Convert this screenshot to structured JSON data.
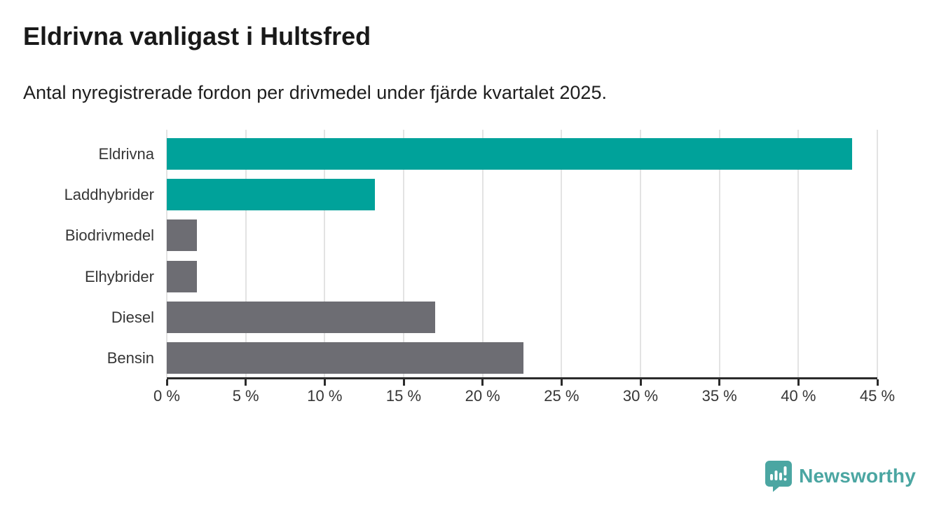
{
  "page": {
    "title": "Eldrivna vanligast i Hultsfred",
    "subtitle": "Antal nyregistrerade fordon per drivmedel under fjärde kvartalet 2025."
  },
  "branding": {
    "logo_text": "Newsworthy",
    "logo_icon": "speech-bubble-with-bar-chart-and-exclamation",
    "logo_color": "#4ba6a2"
  },
  "chart_data": {
    "type": "bar",
    "orientation": "horizontal",
    "title": "Eldrivna vanligast i Hultsfred",
    "subtitle": "Antal nyregistrerade fordon per drivmedel under fjärde kvartalet 2025.",
    "categories": [
      "Eldrivna",
      "Laddhybrider",
      "Biodrivmedel",
      "Elhybrider",
      "Diesel",
      "Bensin"
    ],
    "values": [
      43.4,
      13.2,
      1.9,
      1.9,
      17.0,
      22.6
    ],
    "unit": "%",
    "bar_colors": [
      "#00a29a",
      "#00a29a",
      "#6d6d73",
      "#6d6d73",
      "#6d6d73",
      "#6d6d73"
    ],
    "xlabel": "",
    "ylabel": "",
    "xlim": [
      0,
      45
    ],
    "x_ticks": [
      0,
      5,
      10,
      15,
      20,
      25,
      30,
      35,
      40,
      45
    ],
    "x_tick_labels": [
      "0 %",
      "5 %",
      "10 %",
      "15 %",
      "20 %",
      "25 %",
      "30 %",
      "35 %",
      "40 %",
      "45 %"
    ],
    "grid": "vertical-only",
    "legend": "none",
    "colors": {
      "electric_teal": "#00a29a",
      "other_gray": "#6d6d73",
      "gridline": "#e3e3e3",
      "axis_line": "#2b2b2b",
      "text": "#363636"
    }
  }
}
